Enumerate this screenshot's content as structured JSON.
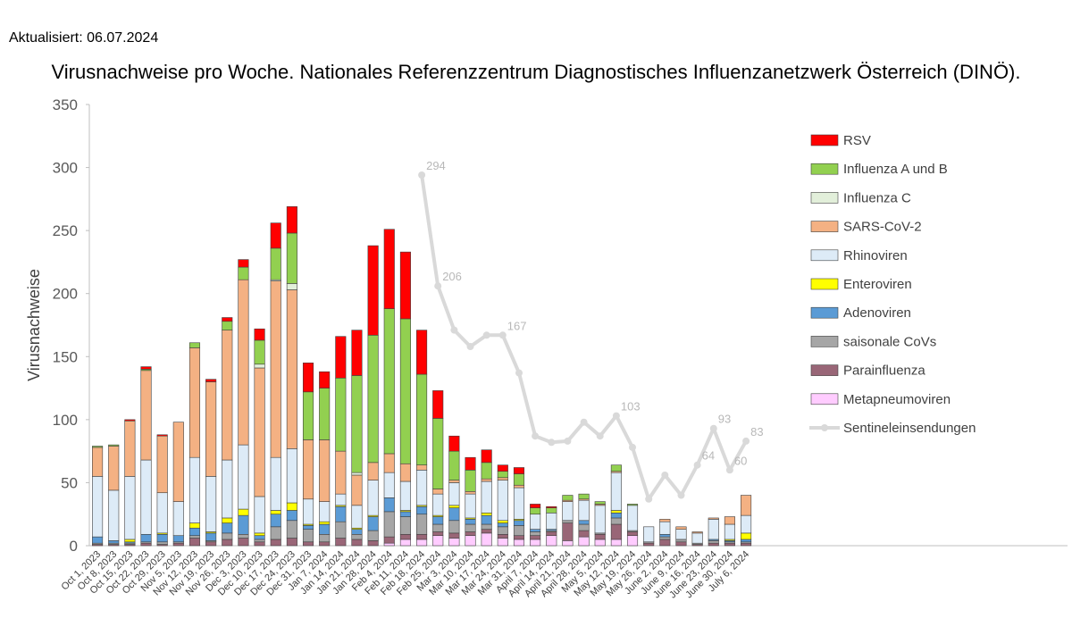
{
  "header": {
    "updated": "Aktualisiert: 06.07.2024",
    "title": "Virusnachweise pro Woche. Nationales Referenzzentrum Diagnostisches Influenzanetzwerk Österreich (DINÖ)."
  },
  "chart_data": {
    "type": "bar",
    "stacked": true,
    "title": "Virusnachweise pro Woche. Nationales Referenzzentrum Diagnostisches Influenzanetzwerk Österreich (DINÖ).",
    "ylabel": "Virusnachweise",
    "xlabel": "",
    "ylim": [
      0,
      350
    ],
    "yticks": [
      0,
      50,
      100,
      150,
      200,
      250,
      300,
      350
    ],
    "grid": false,
    "legend_position": "right",
    "categories": [
      "Oct 1, 2023",
      "Oct 8, 2023",
      "Oct 15, 2023",
      "Oct 22, 2023",
      "Oct 29, 2023",
      "Nov 5, 2023",
      "Nov 12, 2023",
      "Nov 19, 2023",
      "Nov 26, 2023",
      "Dec 3, 2023",
      "Dec 10, 2023",
      "Dec 17, 2023",
      "Dec 24, 2023",
      "Dec 31, 2023",
      "Jan 7, 2024",
      "Jan 14, 2024",
      "Jan 21, 2024",
      "Jan 28, 2024",
      "Feb 4, 2024",
      "Feb 11, 2024",
      "Feb 18, 2024",
      "Feb 25, 2024",
      "Mar 3, 2024",
      "Mar 10, 2024",
      "Mar 17, 2024",
      "Mar 24, 2024",
      "Mar 31, 2024",
      "April 7, 2024",
      "April 14, 2024",
      "April 21, 2024",
      "April 28, 2024",
      "May 5, 2024",
      "May 12, 2024",
      "May 19, 2024",
      "May 26, 2024",
      "June 2, 2024",
      "June 9, 2024",
      "June 16, 2024",
      "June 23, 2024",
      "June 30, 2024",
      "July 6, 2024"
    ],
    "series": [
      {
        "name": "Metapneumoviren",
        "color": "#ffccff",
        "values": [
          0,
          0,
          0,
          0,
          0,
          0,
          0,
          0,
          0,
          0,
          0,
          0,
          0,
          0,
          0,
          0,
          0,
          0,
          2,
          5,
          5,
          8,
          6,
          8,
          10,
          6,
          5,
          5,
          8,
          4,
          7,
          5,
          5,
          8,
          0,
          0,
          0,
          0,
          0,
          0,
          0
        ]
      },
      {
        "name": "Parainfluenza",
        "color": "#996677",
        "values": [
          1,
          1,
          1,
          2,
          1,
          2,
          6,
          3,
          5,
          6,
          3,
          5,
          6,
          3,
          3,
          6,
          5,
          4,
          5,
          4,
          4,
          3,
          4,
          3,
          3,
          3,
          3,
          3,
          3,
          14,
          5,
          4,
          12,
          3,
          2,
          5,
          3,
          1,
          2,
          2,
          2
        ]
      },
      {
        "name": "saisonale CoVs",
        "color": "#a6a6a6",
        "values": [
          1,
          1,
          1,
          1,
          2,
          1,
          2,
          1,
          5,
          3,
          2,
          10,
          14,
          10,
          6,
          13,
          4,
          8,
          20,
          14,
          16,
          6,
          10,
          6,
          4,
          6,
          8,
          3,
          1,
          2,
          5,
          1,
          5,
          1,
          1,
          2,
          2,
          1,
          2,
          1,
          1
        ]
      },
      {
        "name": "Adenoviren",
        "color": "#5b9bd5",
        "values": [
          5,
          2,
          1,
          6,
          6,
          5,
          6,
          6,
          8,
          15,
          3,
          10,
          8,
          3,
          8,
          12,
          4,
          11,
          11,
          4,
          6,
          6,
          10,
          4,
          7,
          3,
          4,
          2,
          1,
          0,
          3,
          0,
          4,
          0,
          0,
          2,
          0,
          0,
          1,
          1,
          2
        ]
      },
      {
        "name": "Enteroviren",
        "color": "#ffff00",
        "values": [
          0,
          0,
          2,
          0,
          1,
          0,
          4,
          1,
          4,
          5,
          2,
          3,
          6,
          1,
          2,
          1,
          1,
          1,
          0,
          1,
          1,
          1,
          2,
          1,
          2,
          2,
          1,
          0,
          0,
          0,
          0,
          0,
          2,
          0,
          0,
          0,
          0,
          0,
          0,
          1,
          5
        ]
      },
      {
        "name": "Rhinoviren",
        "color": "#ddebf7",
        "values": [
          48,
          40,
          50,
          59,
          32,
          27,
          52,
          44,
          46,
          51,
          29,
          42,
          43,
          20,
          16,
          9,
          18,
          28,
          20,
          23,
          28,
          17,
          18,
          19,
          25,
          32,
          25,
          12,
          13,
          15,
          16,
          22,
          30,
          20,
          12,
          10,
          8,
          8,
          16,
          12,
          14
        ]
      },
      {
        "name": "SARS-CoV-2",
        "color": "#f4b183",
        "values": [
          23,
          35,
          44,
          71,
          45,
          63,
          87,
          75,
          103,
          131,
          102,
          140,
          126,
          47,
          49,
          34,
          24,
          14,
          15,
          14,
          4,
          4,
          2,
          2,
          2,
          2,
          2,
          0,
          0,
          1,
          1,
          1,
          1,
          0,
          0,
          2,
          2,
          1,
          1,
          6,
          16
        ]
      },
      {
        "name": "Influenza C",
        "color": "#e2efda",
        "values": [
          0,
          0,
          0,
          0,
          0,
          0,
          0,
          0,
          0,
          0,
          3,
          1,
          5,
          0,
          0,
          0,
          2,
          0,
          0,
          0,
          0,
          0,
          0,
          0,
          0,
          0,
          0,
          0,
          0,
          0,
          0,
          0,
          0,
          0,
          0,
          0,
          0,
          0,
          0,
          0,
          0
        ]
      },
      {
        "name": "Influenza A und B",
        "color": "#92d050",
        "values": [
          1,
          1,
          0,
          1,
          0,
          0,
          4,
          0,
          7,
          10,
          19,
          25,
          40,
          38,
          41,
          58,
          77,
          101,
          115,
          115,
          72,
          56,
          23,
          17,
          13,
          5,
          9,
          5,
          4,
          4,
          4,
          2,
          5,
          1,
          0,
          0,
          0,
          0,
          0,
          0,
          0
        ]
      },
      {
        "name": "RSV",
        "color": "#ff0000",
        "values": [
          0,
          0,
          1,
          2,
          1,
          0,
          0,
          2,
          3,
          6,
          9,
          20,
          21,
          23,
          13,
          33,
          36,
          71,
          63,
          53,
          35,
          22,
          12,
          10,
          10,
          5,
          5,
          3,
          1,
          0,
          0,
          0,
          0,
          0,
          0,
          0,
          0,
          0,
          0,
          0,
          0
        ]
      }
    ],
    "line": {
      "name": "Sentineleinsendungen",
      "color": "#d9d9d9",
      "start_index": 20,
      "values": [
        294,
        206,
        171,
        158,
        167,
        167,
        137,
        87,
        82,
        83,
        98,
        87,
        103,
        78,
        37,
        56,
        40,
        64,
        93,
        60,
        83
      ],
      "labeled": [
        {
          "index": 20,
          "text": "294"
        },
        {
          "index": 21,
          "text": "206"
        },
        {
          "index": 25,
          "text": "167"
        },
        {
          "index": 32,
          "text": "103"
        },
        {
          "index": 37,
          "text": "64"
        },
        {
          "index": 38,
          "text": "93"
        },
        {
          "index": 39,
          "text": "60"
        },
        {
          "index": 40,
          "text": "83"
        }
      ]
    },
    "legend": [
      "RSV",
      "Influenza A und B",
      "Influenza C",
      "SARS-CoV-2",
      "Rhinoviren",
      "Enteroviren",
      "Adenoviren",
      "saisonale CoVs",
      "Parainfluenza",
      "Metapneumoviren",
      "Sentineleinsendungen"
    ]
  }
}
